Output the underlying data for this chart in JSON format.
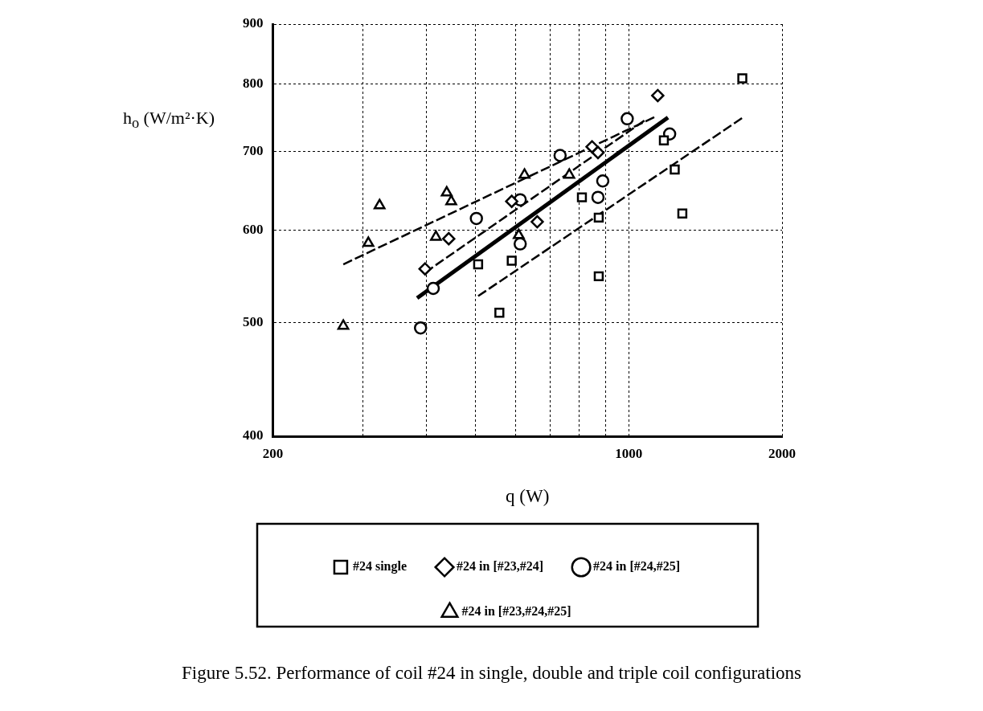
{
  "chart_data": {
    "type": "scatter",
    "xlabel": "q (W)",
    "ylabel": "h$_{o}$ (W/m²·K)",
    "log": "xy",
    "grid": true,
    "legend": "bottom",
    "xlim": [
      200,
      2000
    ],
    "xticks": [
      200,
      {
        "value": 300,
        "label": null
      },
      {
        "value": 400,
        "label": null
      },
      {
        "value": 500,
        "label": null
      },
      {
        "value": 600,
        "label": null
      },
      {
        "value": 700,
        "label": null
      },
      {
        "value": 800,
        "label": null
      },
      {
        "value": 900,
        "label": null
      },
      1000,
      2000
    ],
    "ylim": [
      400,
      900
    ],
    "yticks": [
      400,
      500,
      600,
      700,
      800,
      900
    ],
    "series": [
      {
        "name": "#24 single",
        "marker": "square",
        "color": "#000000",
        "x": [
          506,
          589,
          557,
          809,
          873,
          873,
          1172,
          1231,
          1274,
          1671
        ],
        "values": [
          561,
          565,
          510,
          640,
          615,
          548,
          716,
          676,
          620,
          809
        ]
      },
      {
        "name": "#24 in [#23,#24]",
        "marker": "diamond",
        "color": "#000000",
        "x": [
          398,
          443,
          589,
          661,
          847,
          870,
          1140
        ],
        "values": [
          556,
          590,
          635,
          610,
          707,
          699,
          782
        ]
      },
      {
        "name": "#24 in [#24,#25]",
        "marker": "circle",
        "color": "#000000",
        "x": [
          390,
          413,
          502,
          612,
          612,
          733,
          870,
          889,
          993,
          1203
        ],
        "values": [
          495,
          535,
          614,
          584,
          637,
          695,
          640,
          661,
          747,
          725
        ]
      },
      {
        "name": "#24 in [#23,#24,#25]",
        "marker": "triangle",
        "color": "#000000",
        "x": [
          275,
          308,
          324,
          418,
          439,
          448,
          624,
          608,
          764
        ],
        "values": [
          497,
          585,
          630,
          592,
          646,
          635,
          669,
          594,
          669
        ]
      },
      {
        "type": "line",
        "marker": "none",
        "line_style": "solid",
        "color": "#000000",
        "x": [
          384,
          1194
        ],
        "values": [
          525,
          749
        ]
      },
      {
        "type": "line",
        "marker": "none",
        "line_style": "dashed",
        "color": "#000000",
        "x": [
          506,
          1684
        ],
        "values": [
          527,
          750
        ]
      },
      {
        "type": "line",
        "marker": "none",
        "line_style": "dashed",
        "color": "#000000",
        "x": [
          275,
          1127
        ],
        "values": [
          561,
          750
        ]
      },
      {
        "type": "line",
        "marker": "none",
        "line_style": "dashed",
        "color": "#000000",
        "x": [
          398,
          1086
        ],
        "values": [
          552,
          747
        ]
      }
    ],
    "annotations": [
      "Figure 5.52. Performance of coil #24 in single, double and triple coil configurations"
    ]
  }
}
